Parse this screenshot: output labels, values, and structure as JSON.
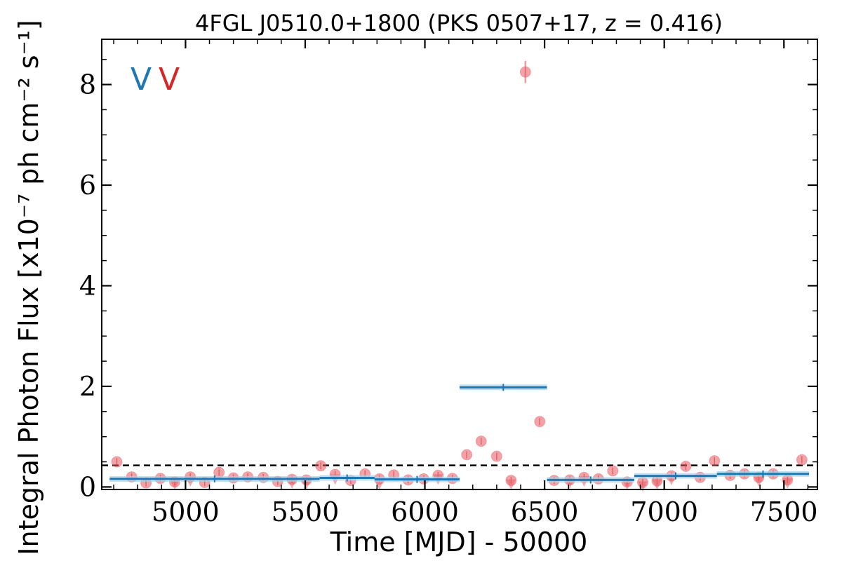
{
  "chart_data": {
    "type": "scatter",
    "title": "4FGL J0510.0+1800 (PKS 0507+17, z = 0.416)",
    "xlabel": "Time [MJD] - 50000",
    "ylabel": "Integral Photon Flux [x10⁻⁷ ph cm⁻² s⁻¹]",
    "xlim": [
      4650,
      7640
    ],
    "ylim": [
      -0.05,
      8.9
    ],
    "x_ticks": [
      5000,
      5500,
      6000,
      6500,
      7000,
      7500
    ],
    "y_ticks": [
      0,
      2,
      4,
      6,
      8
    ],
    "grid": false,
    "legend": {
      "position": "top-left",
      "entries": [
        {
          "label": "V",
          "color": "#1f77b4"
        },
        {
          "label": "V",
          "color": "#d62728"
        }
      ]
    },
    "reference_line": {
      "y": 0.43,
      "style": "dashed",
      "color": "#000000"
    },
    "series": [
      {
        "kind": "points",
        "color": "#e8585f",
        "points": [
          {
            "x": 4713,
            "y": 0.5
          },
          {
            "x": 4775,
            "y": 0.2
          },
          {
            "x": 4835,
            "y": 0.08
          },
          {
            "x": 4895,
            "y": 0.17
          },
          {
            "x": 4955,
            "y": 0.1
          },
          {
            "x": 5020,
            "y": 0.2
          },
          {
            "x": 5080,
            "y": 0.09
          },
          {
            "x": 5140,
            "y": 0.29
          },
          {
            "x": 5200,
            "y": 0.18
          },
          {
            "x": 5260,
            "y": 0.2
          },
          {
            "x": 5325,
            "y": 0.19
          },
          {
            "x": 5385,
            "y": 0.11
          },
          {
            "x": 5445,
            "y": 0.15
          },
          {
            "x": 5505,
            "y": 0.14
          },
          {
            "x": 5565,
            "y": 0.42
          },
          {
            "x": 5625,
            "y": 0.25
          },
          {
            "x": 5690,
            "y": 0.13
          },
          {
            "x": 5750,
            "y": 0.26
          },
          {
            "x": 5810,
            "y": 0.16
          },
          {
            "x": 5870,
            "y": 0.24
          },
          {
            "x": 5930,
            "y": 0.14
          },
          {
            "x": 5995,
            "y": 0.16
          },
          {
            "x": 6055,
            "y": 0.23
          },
          {
            "x": 6115,
            "y": 0.17
          },
          {
            "x": 6175,
            "y": 0.64
          },
          {
            "x": 6235,
            "y": 0.91
          },
          {
            "x": 6300,
            "y": 0.61
          },
          {
            "x": 6360,
            "y": 0.13
          },
          {
            "x": 6420,
            "y": 8.25,
            "err": 0.22
          },
          {
            "x": 6480,
            "y": 1.3
          },
          {
            "x": 6540,
            "y": 0.13
          },
          {
            "x": 6605,
            "y": 0.14
          },
          {
            "x": 6665,
            "y": 0.19
          },
          {
            "x": 6725,
            "y": 0.16
          },
          {
            "x": 6785,
            "y": 0.32
          },
          {
            "x": 6845,
            "y": 0.1
          },
          {
            "x": 6910,
            "y": 0.09
          },
          {
            "x": 6970,
            "y": 0.12
          },
          {
            "x": 7030,
            "y": 0.22
          },
          {
            "x": 7090,
            "y": 0.41
          },
          {
            "x": 7150,
            "y": 0.19
          },
          {
            "x": 7210,
            "y": 0.52
          },
          {
            "x": 7275,
            "y": 0.23
          },
          {
            "x": 7335,
            "y": 0.26
          },
          {
            "x": 7395,
            "y": 0.19
          },
          {
            "x": 7455,
            "y": 0.26
          },
          {
            "x": 7515,
            "y": 0.14
          },
          {
            "x": 7575,
            "y": 0.54
          }
        ]
      },
      {
        "kind": "upper_limits",
        "color": "#e8585f",
        "points": [
          {
            "x": 4955,
            "y": 0.04
          },
          {
            "x": 5020,
            "y": 0.1
          },
          {
            "x": 5445,
            "y": 0.06
          },
          {
            "x": 5505,
            "y": 0.05
          },
          {
            "x": 5625,
            "y": 0.14
          },
          {
            "x": 5810,
            "y": 0.04
          },
          {
            "x": 6055,
            "y": 0.14
          },
          {
            "x": 6360,
            "y": 0.04
          },
          {
            "x": 6605,
            "y": 0.06
          },
          {
            "x": 6665,
            "y": 0.1
          },
          {
            "x": 6845,
            "y": 0.04
          },
          {
            "x": 6910,
            "y": 0.0
          },
          {
            "x": 6970,
            "y": 0.04
          },
          {
            "x": 7030,
            "y": 0.13
          },
          {
            "x": 7395,
            "y": 0.1
          },
          {
            "x": 7515,
            "y": 0.06
          }
        ]
      },
      {
        "kind": "bayesian_blocks",
        "color": "#1f77b4",
        "blocks": [
          {
            "x_start": 4683,
            "x_end": 5560,
            "y": 0.16
          },
          {
            "x_start": 5560,
            "x_end": 5790,
            "y": 0.18
          },
          {
            "x_start": 5790,
            "x_end": 6145,
            "y": 0.15
          },
          {
            "x_start": 6145,
            "x_end": 6510,
            "y": 1.98
          },
          {
            "x_start": 6510,
            "x_end": 6875,
            "y": 0.14
          },
          {
            "x_start": 6875,
            "x_end": 7220,
            "y": 0.22
          },
          {
            "x_start": 7220,
            "x_end": 7605,
            "y": 0.26
          }
        ]
      }
    ]
  }
}
